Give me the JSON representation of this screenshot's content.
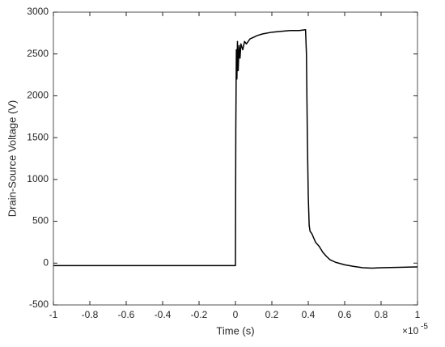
{
  "chart_data": {
    "type": "line",
    "x_label": "Time (s)",
    "y_label": "Drain-Source Voltage (V)",
    "x_exponent": {
      "base": "×10",
      "power": "-5"
    },
    "x": [
      -1,
      -0.5,
      -0.001,
      0,
      0.002,
      0.005,
      0.008,
      0.011,
      0.015,
      0.02,
      0.025,
      0.03,
      0.04,
      0.05,
      0.06,
      0.08,
      0.1,
      0.12,
      0.15,
      0.2,
      0.25,
      0.3,
      0.35,
      0.385,
      0.39,
      0.395,
      0.4,
      0.405,
      0.41,
      0.42,
      0.43,
      0.44,
      0.46,
      0.48,
      0.5,
      0.52,
      0.55,
      0.6,
      0.65,
      0.7,
      0.75,
      0.8,
      0.9,
      1
    ],
    "series": [
      {
        "color": "#000000",
        "values": [
          -30,
          -30,
          -30,
          -30,
          1600,
          2550,
          2200,
          2650,
          2300,
          2600,
          2450,
          2620,
          2550,
          2650,
          2620,
          2680,
          2700,
          2720,
          2740,
          2760,
          2770,
          2780,
          2780,
          2790,
          2500,
          1500,
          800,
          450,
          380,
          350,
          300,
          250,
          200,
          130,
          80,
          40,
          10,
          -20,
          -40,
          -55,
          -60,
          -55,
          -50,
          -45
        ]
      }
    ],
    "xlim": [
      -1,
      1
    ],
    "xticks": [
      -1,
      -0.8,
      -0.6,
      -0.4,
      -0.2,
      0,
      0.2,
      0.4,
      0.6,
      0.8,
      1
    ],
    "ylim": [
      -500,
      3000
    ],
    "yticks": [
      -500,
      0,
      500,
      1000,
      1500,
      2000,
      2500,
      3000
    ],
    "grid": false
  }
}
